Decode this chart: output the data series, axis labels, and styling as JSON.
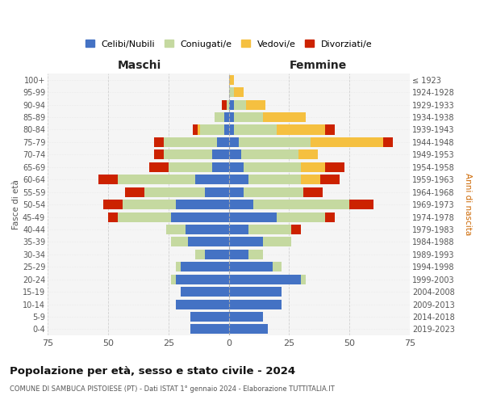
{
  "age_groups": [
    "0-4",
    "5-9",
    "10-14",
    "15-19",
    "20-24",
    "25-29",
    "30-34",
    "35-39",
    "40-44",
    "45-49",
    "50-54",
    "55-59",
    "60-64",
    "65-69",
    "70-74",
    "75-79",
    "80-84",
    "85-89",
    "90-94",
    "95-99",
    "100+"
  ],
  "birth_years": [
    "2019-2023",
    "2014-2018",
    "2009-2013",
    "2004-2008",
    "1999-2003",
    "1994-1998",
    "1989-1993",
    "1984-1988",
    "1979-1983",
    "1974-1978",
    "1969-1973",
    "1964-1968",
    "1959-1963",
    "1954-1958",
    "1949-1953",
    "1944-1948",
    "1939-1943",
    "1934-1938",
    "1929-1933",
    "1924-1928",
    "≤ 1923"
  ],
  "colors": {
    "celibi": "#4472c4",
    "coniugati": "#c5d9a0",
    "vedovi": "#f5c040",
    "divorziati": "#cc2200"
  },
  "maschi": {
    "celibi": [
      16,
      16,
      22,
      20,
      22,
      20,
      10,
      17,
      18,
      24,
      22,
      10,
      14,
      7,
      7,
      5,
      2,
      2,
      0,
      0,
      0
    ],
    "coniugati": [
      0,
      0,
      0,
      0,
      2,
      2,
      4,
      7,
      8,
      22,
      22,
      25,
      32,
      18,
      20,
      22,
      10,
      4,
      1,
      0,
      0
    ],
    "vedovi": [
      0,
      0,
      0,
      0,
      0,
      0,
      0,
      0,
      0,
      0,
      0,
      0,
      0,
      0,
      0,
      0,
      1,
      0,
      0,
      0,
      0
    ],
    "divorziati": [
      0,
      0,
      0,
      0,
      0,
      0,
      0,
      0,
      0,
      4,
      8,
      8,
      8,
      8,
      4,
      4,
      2,
      0,
      2,
      0,
      0
    ]
  },
  "femmine": {
    "celibi": [
      16,
      14,
      22,
      22,
      30,
      18,
      8,
      14,
      8,
      20,
      10,
      6,
      8,
      6,
      5,
      4,
      2,
      2,
      2,
      0,
      0
    ],
    "coniugati": [
      0,
      0,
      0,
      0,
      2,
      4,
      6,
      12,
      18,
      20,
      40,
      25,
      22,
      24,
      24,
      30,
      18,
      12,
      5,
      2,
      0
    ],
    "vedovi": [
      0,
      0,
      0,
      0,
      0,
      0,
      0,
      0,
      0,
      0,
      0,
      0,
      8,
      10,
      8,
      30,
      20,
      18,
      8,
      4,
      2
    ],
    "divorziati": [
      0,
      0,
      0,
      0,
      0,
      0,
      0,
      0,
      4,
      4,
      10,
      8,
      8,
      8,
      0,
      4,
      4,
      0,
      0,
      0,
      0
    ]
  },
  "title": "Popolazione per età, sesso e stato civile - 2024",
  "subtitle": "COMUNE DI SAMBUCA PISTOIESE (PT) - Dati ISTAT 1° gennaio 2024 - Elaborazione TUTTITALIA.IT",
  "xlabel_left": "Maschi",
  "xlabel_right": "Femmine",
  "ylabel_left": "Fasce di età",
  "ylabel_right": "Anni di nascita",
  "xlim": 75,
  "legend_labels": [
    "Celibi/Nubili",
    "Coniugati/e",
    "Vedovi/e",
    "Divorziati/e"
  ],
  "background_color": "#ffffff",
  "grid_color": "#cccccc"
}
